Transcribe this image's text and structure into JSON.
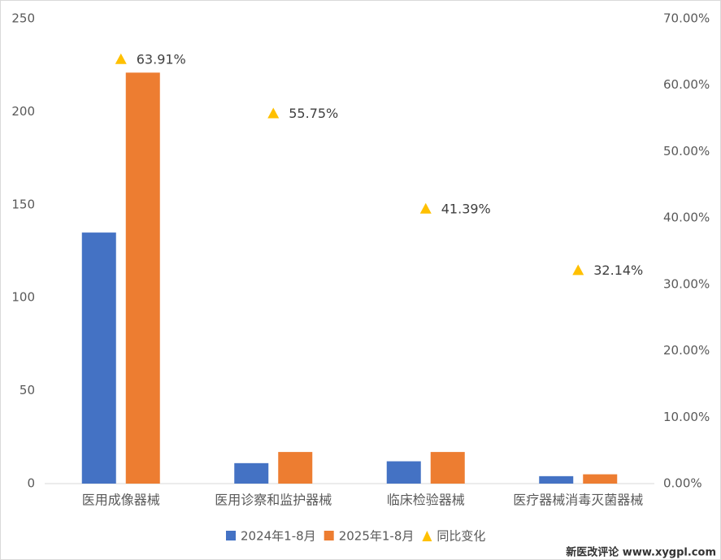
{
  "chart_data": {
    "type": "bar",
    "categories": [
      "医用成像器械",
      "医用诊察和监护器械",
      "临床检验器械",
      "医疗器械消毒灭菌器械"
    ],
    "series": [
      {
        "name": "2024年1-8月",
        "color": "#4472c4",
        "values": [
          135,
          11,
          12,
          4
        ]
      },
      {
        "name": "2025年1-8月",
        "color": "#ed7d31",
        "values": [
          221,
          17,
          17,
          5
        ]
      },
      {
        "name": "同比变化",
        "color": "#ffc000",
        "axis": "y2",
        "marker": "triangle",
        "values": [
          63.91,
          55.75,
          41.39,
          32.14
        ],
        "value_labels": [
          "63.91%",
          "55.75%",
          "41.39%",
          "32.14%"
        ]
      }
    ],
    "ylim": [
      0,
      250
    ],
    "yticks": [
      0,
      50,
      100,
      150,
      200,
      250
    ],
    "y2lim": [
      0,
      70
    ],
    "y2ticks": [
      {
        "value": 0,
        "label": "0.00%"
      },
      {
        "value": 10,
        "label": "10.00%"
      },
      {
        "value": 20,
        "label": "20.00%"
      },
      {
        "value": 30,
        "label": "30.00%"
      },
      {
        "value": 40,
        "label": "40.00%"
      },
      {
        "value": 50,
        "label": "50.00%"
      },
      {
        "value": 60,
        "label": "60.00%"
      },
      {
        "value": 70,
        "label": "70.00%"
      }
    ],
    "grid": false,
    "legend": "bottom",
    "watermark": "新医改评论 www.xygpl.com"
  }
}
